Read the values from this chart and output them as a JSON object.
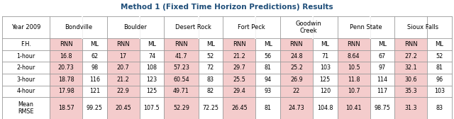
{
  "title": "Method 1 (Fixed Time Horizon Predictions) Results",
  "title_color": "#1F4E79",
  "groups": [
    "Year 2009",
    "Bondville",
    "Boulder",
    "Desert Rock",
    "Fort Peck",
    "Goodwin\nCreek",
    "Penn State",
    "Sioux Falls"
  ],
  "subheader": [
    "F.H.",
    "RNN",
    "ML",
    "RNN",
    "ML",
    "RNN",
    "ML",
    "RNN",
    "ML",
    "RNN",
    "ML",
    "RNN",
    "ML",
    "RNN",
    "ML"
  ],
  "rows": [
    [
      "1-hour",
      "16.8",
      "62",
      "17",
      "74",
      "41.7",
      "52",
      "21.2",
      "56",
      "24.8",
      "71",
      "8.64",
      "67",
      "27.2",
      "52"
    ],
    [
      "2-hour",
      "20.73",
      "98",
      "20.7",
      "108",
      "57.23",
      "72",
      "29.7",
      "81",
      "25.2",
      "103",
      "10.5",
      "97",
      "32.1",
      "81"
    ],
    [
      "3-hour",
      "18.78",
      "116",
      "21.2",
      "123",
      "60.54",
      "83",
      "25.5",
      "94",
      "26.9",
      "125",
      "11.8",
      "114",
      "30.6",
      "96"
    ],
    [
      "4-hour",
      "17.98",
      "121",
      "22.9",
      "125",
      "49.71",
      "82",
      "29.4",
      "93",
      "22",
      "120",
      "10.7",
      "117",
      "35.3",
      "103"
    ],
    [
      "Mean\nRMSE",
      "18.57",
      "99.25",
      "20.45",
      "107.5",
      "52.29",
      "72.25",
      "26.45",
      "81",
      "24.73",
      "104.8",
      "10.41",
      "98.75",
      "31.3",
      "83"
    ]
  ],
  "highlight_color": "#F4CCCC",
  "white": "#FFFFFF",
  "grid_color": "#999999",
  "rnn_cols": [
    1,
    3,
    5,
    7,
    9,
    11,
    13
  ],
  "col_props": [
    5.8,
    4.0,
    3.0,
    4.0,
    3.0,
    4.2,
    3.0,
    4.0,
    3.0,
    4.0,
    3.0,
    4.0,
    3.0,
    4.0,
    3.0
  ],
  "figsize": [
    6.4,
    1.68
  ],
  "dpi": 100
}
